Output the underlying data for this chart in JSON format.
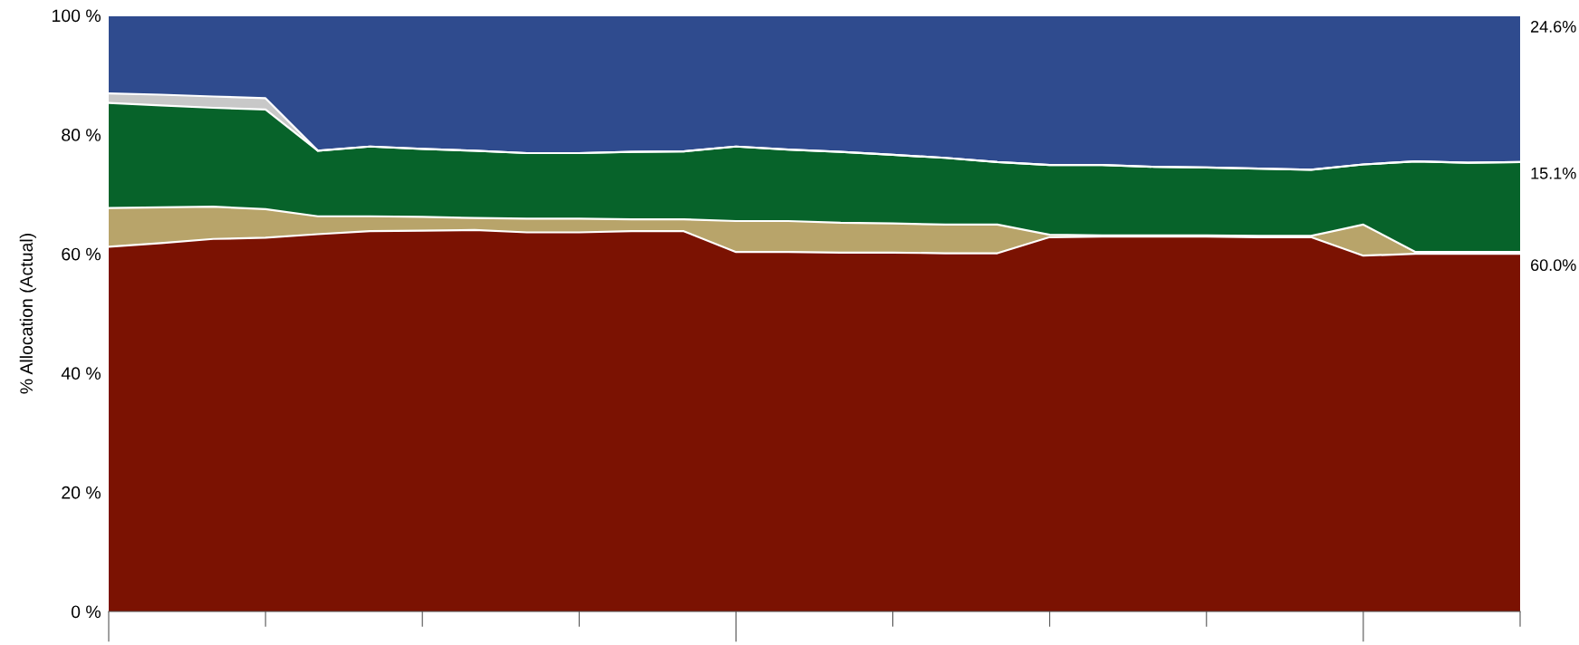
{
  "chart_data": {
    "type": "area",
    "stacked": true,
    "ylabel": "% Allocation (Actual)",
    "categories": [
      null,
      null,
      null,
      null,
      null,
      null,
      null,
      null,
      null,
      null,
      null,
      null,
      null,
      null,
      null,
      null,
      null,
      null,
      null,
      null,
      null,
      null,
      null,
      null,
      null,
      null,
      null,
      null
    ],
    "ylim": [
      0,
      100
    ],
    "yticks": [
      {
        "value": 0,
        "label": "0 %"
      },
      {
        "value": 20,
        "label": "20 %"
      },
      {
        "value": 40,
        "label": "40 %"
      },
      {
        "value": 60,
        "label": "60 %"
      },
      {
        "value": 80,
        "label": "80 %"
      },
      {
        "value": 100,
        "label": "100 %"
      }
    ],
    "grid": false,
    "legend": false,
    "series": [
      {
        "color": "#7b1202",
        "values": [
          61.2,
          61.8,
          62.5,
          62.7,
          63.3,
          63.8,
          63.9,
          64.0,
          63.6,
          63.6,
          63.8,
          63.8,
          60.3,
          60.3,
          60.2,
          60.2,
          60.1,
          60.1,
          62.8,
          62.9,
          62.9,
          62.9,
          62.8,
          62.8,
          59.7,
          60.0,
          60.0,
          60.0
        ],
        "value_labels": [
          null,
          null,
          null,
          null,
          null,
          null,
          null,
          null,
          null,
          null,
          null,
          null,
          null,
          null,
          null,
          null,
          null,
          null,
          null,
          null,
          null,
          null,
          null,
          null,
          null,
          null,
          null,
          "60.0%"
        ]
      },
      {
        "color": "#b8a46a",
        "values": [
          6.5,
          6.0,
          5.4,
          4.8,
          3.0,
          2.5,
          2.3,
          2.0,
          2.3,
          2.3,
          2.0,
          2.0,
          5.2,
          5.2,
          5.0,
          4.9,
          4.8,
          4.8,
          0.4,
          0.2,
          0.2,
          0.2,
          0.2,
          0.2,
          5.2,
          0.3,
          0.3,
          0.3
        ]
      },
      {
        "color": "#07632a",
        "values": [
          17.6,
          17.1,
          16.6,
          16.7,
          11.0,
          11.7,
          11.4,
          11.3,
          11.0,
          11.0,
          11.3,
          11.4,
          12.5,
          12.0,
          11.9,
          11.5,
          11.2,
          10.5,
          11.7,
          11.8,
          11.5,
          11.4,
          11.3,
          11.1,
          10.1,
          15.2,
          15.0,
          15.1
        ],
        "value_labels": [
          null,
          null,
          null,
          null,
          null,
          null,
          null,
          null,
          null,
          null,
          null,
          null,
          null,
          null,
          null,
          null,
          null,
          null,
          null,
          null,
          null,
          null,
          null,
          null,
          null,
          null,
          null,
          "15.1%"
        ]
      },
      {
        "color": "#c8c8c8",
        "values": [
          1.6,
          1.8,
          1.9,
          1.9,
          0,
          0,
          0,
          0,
          0,
          0,
          0,
          0,
          0,
          0,
          0,
          0,
          0,
          0,
          0,
          0,
          0,
          0,
          0,
          0,
          0,
          0,
          0,
          0
        ]
      },
      {
        "color": "#2f4b8e",
        "values": [
          13.1,
          13.3,
          13.6,
          13.9,
          22.7,
          22.0,
          22.4,
          22.7,
          23.1,
          23.1,
          22.9,
          22.8,
          22.0,
          22.5,
          22.9,
          23.4,
          23.9,
          24.6,
          25.1,
          25.1,
          25.4,
          25.5,
          25.7,
          25.9,
          25.0,
          24.5,
          24.7,
          24.6
        ],
        "value_labels": [
          null,
          null,
          null,
          null,
          null,
          null,
          null,
          null,
          null,
          null,
          null,
          null,
          null,
          null,
          null,
          null,
          null,
          null,
          null,
          null,
          null,
          null,
          null,
          null,
          null,
          null,
          null,
          "24.6%"
        ]
      }
    ]
  }
}
